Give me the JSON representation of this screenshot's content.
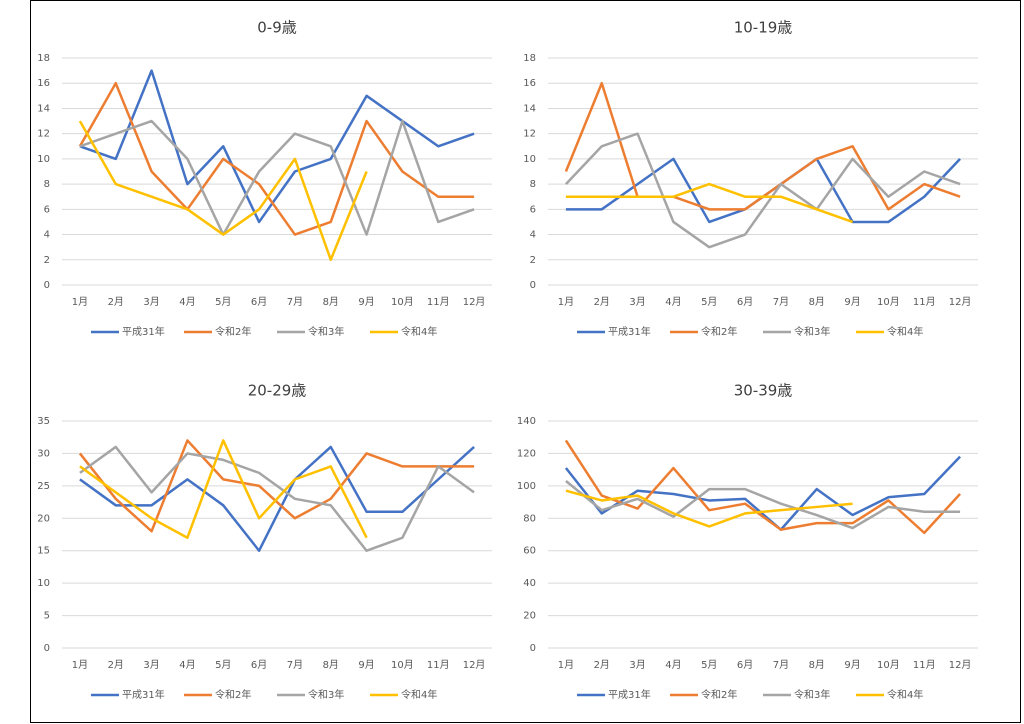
{
  "chart_data": [
    {
      "type": "line",
      "title": "0-9歳",
      "categories": [
        "1月",
        "2月",
        "3月",
        "4月",
        "5月",
        "6月",
        "7月",
        "8月",
        "9月",
        "10月",
        "11月",
        "12月"
      ],
      "ylim": [
        0,
        18
      ],
      "yticks": [
        0,
        2,
        4,
        6,
        8,
        10,
        12,
        14,
        16,
        18
      ],
      "grid": true,
      "legend": "bottom",
      "series": [
        {
          "name": "平成31年",
          "color": "#4472c4",
          "values": [
            11,
            10,
            17,
            8,
            11,
            5,
            9,
            10,
            15,
            13,
            11,
            12
          ]
        },
        {
          "name": "令和2年",
          "color": "#ed7d31",
          "values": [
            11,
            16,
            9,
            6,
            10,
            8,
            4,
            5,
            13,
            9,
            7,
            7
          ]
        },
        {
          "name": "令和3年",
          "color": "#a5a5a5",
          "values": [
            11,
            12,
            13,
            10,
            4,
            9,
            12,
            11,
            4,
            13,
            5,
            6
          ]
        },
        {
          "name": "令和4年",
          "color": "#ffc000",
          "values": [
            13,
            8,
            7,
            6,
            4,
            6,
            10,
            2,
            9,
            null,
            null,
            null
          ]
        }
      ]
    },
    {
      "type": "line",
      "title": "10-19歳",
      "categories": [
        "1月",
        "2月",
        "3月",
        "4月",
        "5月",
        "6月",
        "7月",
        "8月",
        "9月",
        "10月",
        "11月",
        "12月"
      ],
      "ylim": [
        0,
        18
      ],
      "yticks": [
        0,
        2,
        4,
        6,
        8,
        10,
        12,
        14,
        16,
        18
      ],
      "grid": true,
      "legend": "bottom",
      "series": [
        {
          "name": "平成31年",
          "color": "#4472c4",
          "values": [
            6,
            6,
            8,
            10,
            5,
            6,
            8,
            10,
            5,
            5,
            7,
            10
          ]
        },
        {
          "name": "令和2年",
          "color": "#ed7d31",
          "values": [
            9,
            16,
            7,
            7,
            6,
            6,
            8,
            10,
            11,
            6,
            8,
            7
          ]
        },
        {
          "name": "令和3年",
          "color": "#a5a5a5",
          "values": [
            8,
            11,
            12,
            5,
            3,
            4,
            8,
            6,
            10,
            7,
            9,
            8
          ]
        },
        {
          "name": "令和4年",
          "color": "#ffc000",
          "values": [
            7,
            7,
            7,
            7,
            8,
            7,
            7,
            6,
            5,
            null,
            null,
            null
          ]
        }
      ]
    },
    {
      "type": "line",
      "title": "20-29歳",
      "categories": [
        "1月",
        "2月",
        "3月",
        "4月",
        "5月",
        "6月",
        "7月",
        "8月",
        "9月",
        "10月",
        "11月",
        "12月"
      ],
      "ylim": [
        0,
        35
      ],
      "yticks": [
        0,
        5,
        10,
        15,
        20,
        25,
        30,
        35
      ],
      "grid": true,
      "legend": "bottom",
      "series": [
        {
          "name": "平成31年",
          "color": "#4472c4",
          "values": [
            26,
            22,
            22,
            26,
            22,
            15,
            26,
            31,
            21,
            21,
            26,
            31
          ]
        },
        {
          "name": "令和2年",
          "color": "#ed7d31",
          "values": [
            30,
            23,
            18,
            32,
            26,
            25,
            20,
            23,
            30,
            28,
            28,
            28
          ]
        },
        {
          "name": "令和3年",
          "color": "#a5a5a5",
          "values": [
            27,
            31,
            24,
            30,
            29,
            27,
            23,
            22,
            15,
            17,
            28,
            24
          ]
        },
        {
          "name": "令和4年",
          "color": "#ffc000",
          "values": [
            28,
            24,
            20,
            17,
            32,
            20,
            26,
            28,
            17,
            null,
            null,
            null
          ]
        }
      ]
    },
    {
      "type": "line",
      "title": "30-39歳",
      "categories": [
        "1月",
        "2月",
        "3月",
        "4月",
        "5月",
        "6月",
        "7月",
        "8月",
        "9月",
        "10月",
        "11月",
        "12月"
      ],
      "ylim": [
        0,
        140
      ],
      "yticks": [
        0,
        20,
        40,
        60,
        80,
        100,
        120,
        140
      ],
      "grid": true,
      "legend": "bottom",
      "series": [
        {
          "name": "平成31年",
          "color": "#4472c4",
          "values": [
            111,
            83,
            97,
            95,
            91,
            92,
            73,
            98,
            82,
            93,
            95,
            118
          ]
        },
        {
          "name": "令和2年",
          "color": "#ed7d31",
          "values": [
            128,
            94,
            86,
            111,
            85,
            89,
            73,
            77,
            77,
            91,
            71,
            95
          ]
        },
        {
          "name": "令和3年",
          "color": "#a5a5a5",
          "values": [
            103,
            85,
            92,
            81,
            98,
            98,
            89,
            82,
            74,
            87,
            84,
            84
          ]
        },
        {
          "name": "令和4年",
          "color": "#ffc000",
          "values": [
            97,
            91,
            94,
            83,
            75,
            83,
            85,
            87,
            89,
            null,
            null,
            null
          ]
        }
      ]
    }
  ]
}
